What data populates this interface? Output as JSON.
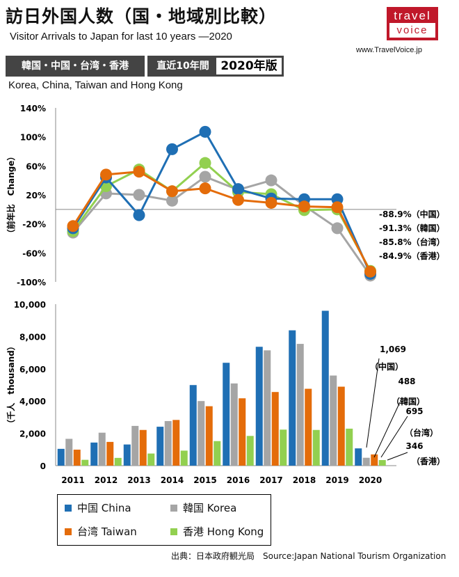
{
  "header": {
    "title_jp": "訪日外国人数（国・地域別比較）",
    "title_en": "Visitor Arrivals to Japan for last 10 years ―2020",
    "logo_top": "travel",
    "logo_bottom": "voice",
    "site": "www.TravelVoice.jp",
    "tag_regions": "韓国・中国・台湾・香港",
    "tag_period": "直近10年間",
    "tag_edition": "2020年版",
    "subtitle": "Korea, China, Taiwan and Hong Kong"
  },
  "legend": {
    "china": "中国 China",
    "korea": "韓国 Korea",
    "taiwan": "台湾 Taiwan",
    "hongkong": "香港 Hong Kong"
  },
  "source": "出典：日本政府観光局　Source:Japan National Tourism Organization",
  "colors": {
    "china": "#1f6fb4",
    "korea": "#a5a5a5",
    "taiwan": "#e46c0a",
    "hongkong": "#92d050"
  },
  "chart_data": [
    {
      "type": "line",
      "ylabel": "（前年比　Change）",
      "ylim": [
        -100,
        140
      ],
      "yticks": [
        "140%",
        "100%",
        "60%",
        "20%",
        "-20%",
        "-60%",
        "-100%"
      ],
      "ytick_values": [
        140,
        100,
        60,
        20,
        -20,
        -60,
        -100
      ],
      "categories": [
        "2011",
        "2012",
        "2013",
        "2014",
        "2015",
        "2016",
        "2017",
        "2018",
        "2019",
        "2020"
      ],
      "grid": false,
      "series": [
        {
          "name": "中国 China",
          "key": "china",
          "values": [
            -26,
            44,
            -8,
            83,
            107,
            28,
            15,
            14,
            14,
            -88.9
          ]
        },
        {
          "name": "韓国 Korea",
          "key": "korea",
          "values": [
            -32,
            22,
            20,
            12,
            45,
            27,
            40,
            5,
            -26,
            -91.3
          ]
        },
        {
          "name": "台湾 Taiwan",
          "key": "taiwan",
          "values": [
            -23,
            48,
            52,
            25,
            29,
            13,
            9,
            4,
            3,
            -85.8
          ]
        },
        {
          "name": "香港 Hong Kong",
          "key": "hongkong",
          "values": [
            -30,
            32,
            55,
            25,
            64,
            24,
            21,
            -1,
            0,
            -84.9
          ]
        }
      ],
      "annotations": [
        "-88.9%（中国）",
        "-91.3%（韓国）",
        "-85.8%（台湾）",
        "-84.9%（香港）"
      ]
    },
    {
      "type": "bar",
      "ylabel": "（千人　thousand）",
      "ylim": [
        0,
        10000
      ],
      "yticks": [
        "10,000",
        "8,000",
        "6,000",
        "4,000",
        "2,000",
        "0"
      ],
      "ytick_values": [
        10000,
        8000,
        6000,
        4000,
        2000,
        0
      ],
      "categories": [
        "2011",
        "2012",
        "2013",
        "2014",
        "2015",
        "2016",
        "2017",
        "2018",
        "2019",
        "2020"
      ],
      "grid": false,
      "series": [
        {
          "name": "中国 China",
          "key": "china",
          "values": [
            1040,
            1430,
            1310,
            2410,
            4990,
            6370,
            7360,
            8380,
            9590,
            1069
          ]
        },
        {
          "name": "韓国 Korea",
          "key": "korea",
          "values": [
            1660,
            2040,
            2460,
            2760,
            4000,
            5090,
            7140,
            7540,
            5580,
            488
          ]
        },
        {
          "name": "台湾 Taiwan",
          "key": "taiwan",
          "values": [
            990,
            1470,
            2210,
            2830,
            3680,
            4170,
            4560,
            4760,
            4890,
            695
          ]
        },
        {
          "name": "香港 Hong Kong",
          "key": "hongkong",
          "values": [
            360,
            480,
            750,
            930,
            1520,
            1840,
            2230,
            2210,
            2290,
            346
          ]
        }
      ],
      "annotations": [
        {
          "value": "1,069",
          "label": "（中国）"
        },
        {
          "value": "488",
          "label": "（韓国）"
        },
        {
          "value": "695",
          "label": "（台湾）"
        },
        {
          "value": "346",
          "label": "（香港）"
        }
      ]
    }
  ]
}
